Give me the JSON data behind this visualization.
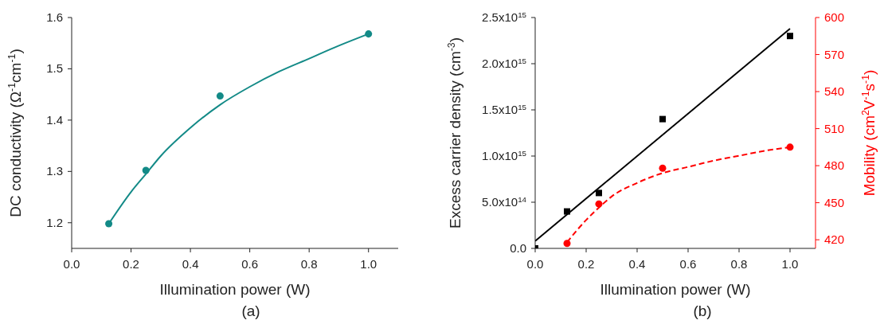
{
  "chart_data": [
    {
      "type": "scatter",
      "x": [
        0.125,
        0.25,
        0.5,
        1
      ],
      "xlabel": "Illumination power (W)",
      "ylabel": "DC conductivity (Ω$^{-1}$cm$^{-1}$)",
      "xlim": [
        0,
        1.1
      ],
      "xticks": [
        {
          "value": 0,
          "label": "0.0"
        },
        {
          "value": 0.2,
          "label": "0.2"
        },
        {
          "value": 0.4,
          "label": "0.4"
        },
        {
          "value": 0.6,
          "label": "0.6"
        },
        {
          "value": 0.8,
          "label": "0.8"
        },
        {
          "value": 1,
          "label": "1.0"
        }
      ],
      "ylim": [
        1.15,
        1.6
      ],
      "yticks": [
        1.2,
        1.3,
        1.4,
        1.5,
        1.6
      ],
      "annotations": [
        "(a)"
      ],
      "series": [
        {
          "color": "#138a87",
          "values": [
            1.198,
            1.302,
            1.447,
            1.568
          ],
          "marker": "circle"
        },
        {
          "type": "line",
          "color": "#138a87",
          "x": [
            0.125,
            0.2,
            0.25,
            0.3,
            0.4,
            0.5,
            0.6,
            0.7,
            0.8,
            0.9,
            1
          ],
          "values": [
            1.198,
            1.26,
            1.295,
            1.33,
            1.385,
            1.43,
            1.465,
            1.495,
            1.52,
            1.545,
            1.568
          ],
          "marker": "none",
          "line_style": "solid"
        }
      ]
    },
    {
      "type": "scatter",
      "x": [
        0,
        0.125,
        0.25,
        0.5,
        1
      ],
      "xlabel": "Illumination power (W)",
      "ylabel": "Excess carrier density (cm$^{-3}$)",
      "y2label": "Mobility (cm$^{2}$V$^{-1}$s$^{-1}$)",
      "xlim": [
        0,
        1.1
      ],
      "xticks": [
        {
          "value": 0,
          "label": "0.0"
        },
        {
          "value": 0.2,
          "label": "0.2"
        },
        {
          "value": 0.4,
          "label": "0.4"
        },
        {
          "value": 0.6,
          "label": "0.6"
        },
        {
          "value": 0.8,
          "label": "0.8"
        },
        {
          "value": 1,
          "label": "1.0"
        }
      ],
      "ylim": [
        0,
        2500000000000000.0
      ],
      "yticks": [
        {
          "value": 0,
          "label": "0.0"
        },
        {
          "value": 500000000000000.0,
          "label": "5.0x10$^{14}$"
        },
        {
          "value": 1000000000000000.0,
          "label": "1.0x10$^{15}$"
        },
        {
          "value": 1500000000000000.0,
          "label": "1.5x10$^{15}$"
        },
        {
          "value": 2000000000000000.0,
          "label": "2.0x10$^{15}$"
        },
        {
          "value": 2500000000000000.0,
          "label": "2.5x10$^{15}$"
        }
      ],
      "y2lim": [
        413,
        600
      ],
      "y2ticks": [
        420,
        450,
        480,
        510,
        540,
        570,
        600
      ],
      "annotations": [
        "(b)"
      ],
      "series": [
        {
          "color": "#000000",
          "values": [
            0,
            400000000000000.0,
            600000000000000.0,
            1400000000000000.0,
            2300000000000000.0
          ],
          "marker": "square"
        },
        {
          "type": "line",
          "color": "#000000",
          "x": [
            0,
            1
          ],
          "values": [
            80000000000000.0,
            2380000000000000.0
          ],
          "marker": "none",
          "line_style": "solid"
        },
        {
          "color": "#ff0000",
          "axis": "y2",
          "x": [
            0.125,
            0.25,
            0.5,
            1
          ],
          "values": [
            417,
            449,
            478,
            495
          ],
          "marker": "circle"
        },
        {
          "type": "line",
          "color": "#ff0000",
          "axis": "y2",
          "x": [
            0.125,
            0.2,
            0.25,
            0.3,
            0.4,
            0.5,
            0.6,
            0.7,
            0.8,
            0.9,
            1
          ],
          "values": [
            418,
            436,
            446,
            455,
            466,
            474,
            479,
            484,
            488,
            492,
            495
          ],
          "marker": "none",
          "line_style": "dashed"
        }
      ]
    }
  ]
}
